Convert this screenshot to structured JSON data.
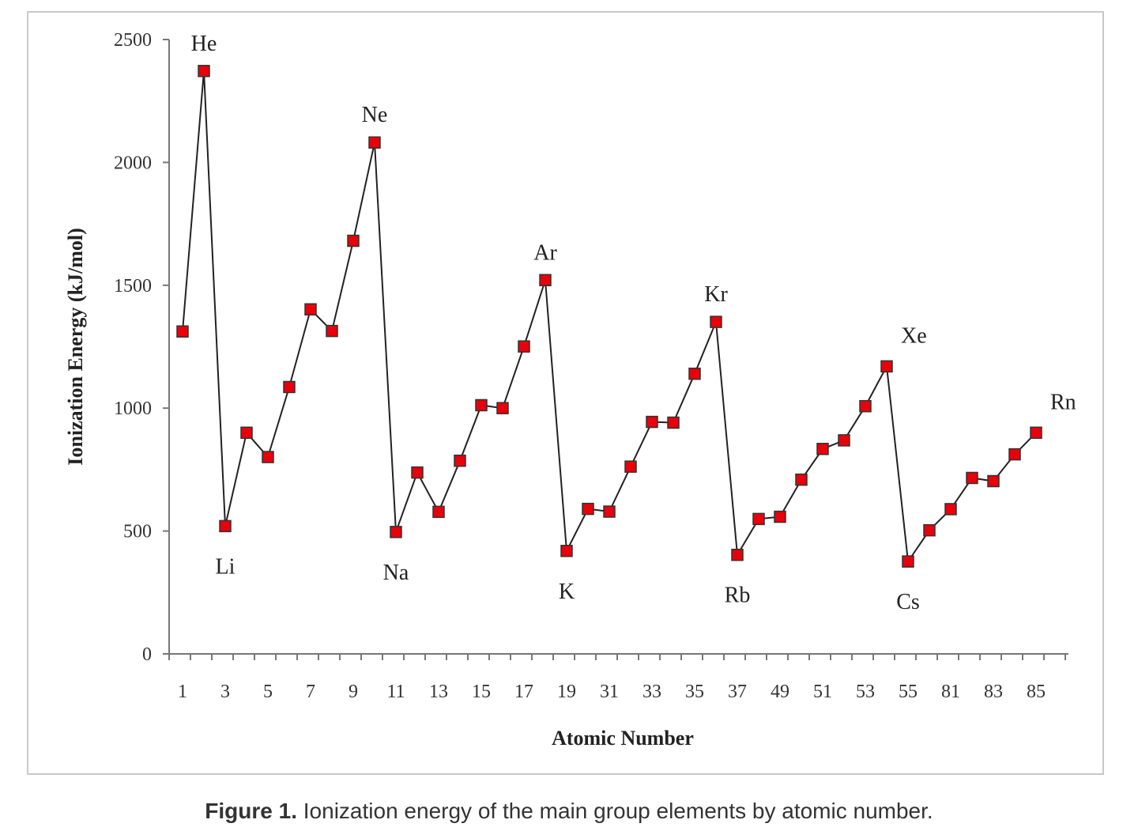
{
  "caption": {
    "label": "Figure 1.",
    "text": "Ionization energy of the main group elements by atomic number."
  },
  "chart_data": {
    "type": "line",
    "title": "",
    "xlabel": "Atomic Number",
    "ylabel": "Ionization Energy (kJ/mol)",
    "ylim": [
      0,
      2500
    ],
    "y_ticks": [
      0,
      500,
      1000,
      1500,
      2000,
      2500
    ],
    "x_tick_labels": [
      "1",
      "3",
      "5",
      "7",
      "9",
      "11",
      "13",
      "15",
      "17",
      "19",
      "31",
      "33",
      "35",
      "37",
      "49",
      "51",
      "53",
      "55",
      "81",
      "83",
      "85"
    ],
    "series": [
      {
        "x": [
          1,
          2,
          3,
          4,
          5,
          6,
          7,
          8,
          9,
          10,
          11,
          12,
          13,
          14,
          15,
          16,
          17,
          18,
          19,
          20,
          31,
          32,
          33,
          34,
          35,
          36,
          37,
          38,
          49,
          50,
          51,
          52,
          53,
          54,
          55,
          56,
          81,
          82,
          83,
          84,
          85
        ],
        "values": [
          1312,
          2372,
          520,
          900,
          801,
          1086,
          1402,
          1314,
          1681,
          2081,
          496,
          738,
          578,
          786,
          1012,
          1000,
          1251,
          1521,
          419,
          590,
          579,
          762,
          944,
          941,
          1140,
          1351,
          403,
          549,
          558,
          709,
          834,
          869,
          1008,
          1170,
          376,
          503,
          589,
          716,
          703,
          812,
          900
        ]
      }
    ],
    "point_labels": [
      {
        "x": 2,
        "text": "He",
        "pos": "above"
      },
      {
        "x": 3,
        "text": "Li",
        "pos": "below"
      },
      {
        "x": 10,
        "text": "Ne",
        "pos": "above"
      },
      {
        "x": 11,
        "text": "Na",
        "pos": "below"
      },
      {
        "x": 18,
        "text": "Ar",
        "pos": "above"
      },
      {
        "x": 19,
        "text": "K",
        "pos": "below"
      },
      {
        "x": 36,
        "text": "Kr",
        "pos": "above"
      },
      {
        "x": 37,
        "text": "Rb",
        "pos": "below"
      },
      {
        "x": 54,
        "text": "Xe",
        "pos": "above-right"
      },
      {
        "x": 55,
        "text": "Cs",
        "pos": "below"
      },
      {
        "x": 85,
        "text": "Rn",
        "pos": "above-right"
      }
    ],
    "grid": false,
    "marker_color": "#e8000b",
    "line_color": "#222222"
  }
}
